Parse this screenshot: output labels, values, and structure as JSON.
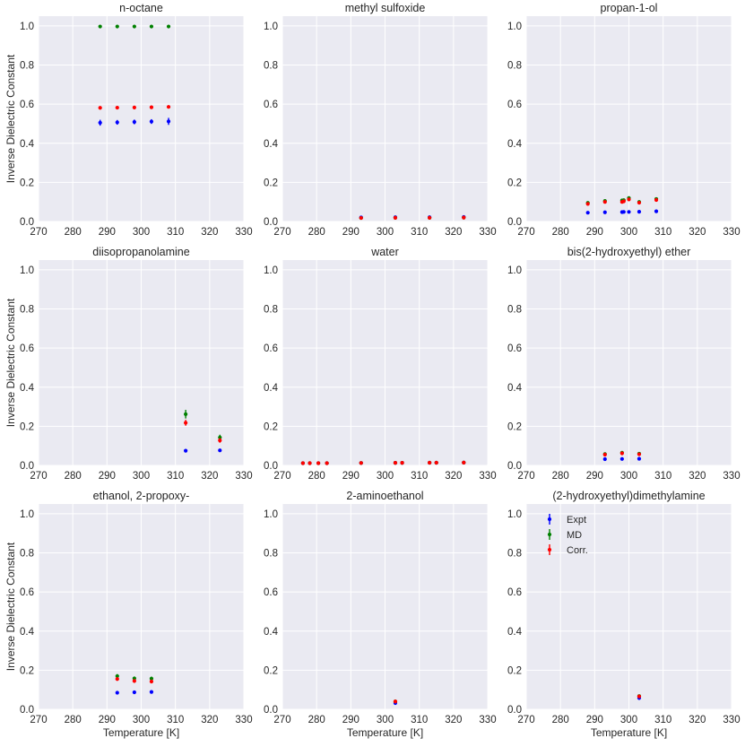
{
  "chart_data": {
    "type": "scatter",
    "layout": "3x3 grid of subplots",
    "shared_ylabel": "Inverse Dielectric Constant",
    "shared_xlabel": "Temperature [K]",
    "xlim": [
      270,
      330
    ],
    "ylim": [
      0,
      1.05
    ],
    "xticks": [
      270,
      280,
      290,
      300,
      310,
      320,
      330
    ],
    "yticks": [
      0.0,
      0.2,
      0.4,
      0.6,
      0.8,
      1.0
    ],
    "ytick_labels": [
      "0.0",
      "0.2",
      "0.4",
      "0.6",
      "0.8",
      "1.0"
    ],
    "grid": true,
    "colors": {
      "Expt": "#0000ff",
      "MD": "#008000",
      "Corr.": "#ff0000",
      "panel_bg": "#eaeaf2",
      "grid": "#ffffff"
    },
    "legend": {
      "panel": 8,
      "placement": "top-left",
      "entries": [
        "Expt",
        "MD",
        "Corr."
      ]
    },
    "panels": [
      {
        "title": "n-octane",
        "series": [
          {
            "name": "Expt",
            "x": [
              288,
              293,
              298,
              303,
              308
            ],
            "y": [
              0.505,
              0.507,
              0.509,
              0.511,
              0.512
            ],
            "err": [
              0.015,
              0.012,
              0.012,
              0.012,
              0.018
            ]
          },
          {
            "name": "MD",
            "x": [
              288,
              293,
              298,
              303,
              308
            ],
            "y": [
              0.997,
              0.997,
              0.997,
              0.997,
              0.997
            ],
            "err": [
              0.002,
              0.002,
              0.002,
              0.002,
              0.002
            ]
          },
          {
            "name": "Corr.",
            "x": [
              288,
              293,
              298,
              303,
              308
            ],
            "y": [
              0.581,
              0.582,
              0.583,
              0.584,
              0.586
            ],
            "err": [
              0.002,
              0.002,
              0.002,
              0.002,
              0.002
            ]
          }
        ]
      },
      {
        "title": "methyl sulfoxide",
        "series": [
          {
            "name": "Expt",
            "x": [
              293,
              303,
              313,
              323
            ],
            "y": [
              0.021,
              0.022,
              0.022,
              0.023
            ],
            "err": [
              0.001,
              0.001,
              0.001,
              0.001
            ]
          },
          {
            "name": "MD",
            "x": [
              293,
              303,
              313,
              323
            ],
            "y": [
              0.018,
              0.019,
              0.019,
              0.02
            ],
            "err": [
              0.003,
              0.003,
              0.003,
              0.003
            ]
          },
          {
            "name": "Corr.",
            "x": [
              293,
              303,
              313,
              323
            ],
            "y": [
              0.018,
              0.019,
              0.019,
              0.02
            ],
            "err": [
              0.002,
              0.002,
              0.002,
              0.002
            ]
          }
        ]
      },
      {
        "title": "propan-1-ol",
        "series": [
          {
            "name": "Expt",
            "x": [
              288,
              293,
              298,
              298.5,
              300,
              303,
              308
            ],
            "y": [
              0.045,
              0.047,
              0.048,
              0.049,
              0.049,
              0.05,
              0.052
            ],
            "err": [
              0.001,
              0.001,
              0.001,
              0.001,
              0.001,
              0.001,
              0.001
            ]
          },
          {
            "name": "MD",
            "x": [
              288,
              293,
              298,
              298.5,
              300,
              303,
              308
            ],
            "y": [
              0.095,
              0.105,
              0.108,
              0.109,
              0.12,
              0.1,
              0.115
            ],
            "err": [
              0.008,
              0.008,
              0.008,
              0.008,
              0.008,
              0.008,
              0.008
            ]
          },
          {
            "name": "Corr.",
            "x": [
              288,
              293,
              298,
              298.5,
              300,
              303,
              308
            ],
            "y": [
              0.09,
              0.1,
              0.1,
              0.103,
              0.113,
              0.096,
              0.11
            ],
            "err": [
              0.007,
              0.007,
              0.007,
              0.007,
              0.007,
              0.007,
              0.007
            ]
          }
        ]
      },
      {
        "title": "diisopropanolamine",
        "series": [
          {
            "name": "Expt",
            "x": [
              313,
              323
            ],
            "y": [
              0.075,
              0.077
            ],
            "err": [
              0.002,
              0.002
            ]
          },
          {
            "name": "MD",
            "x": [
              313,
              323
            ],
            "y": [
              0.262,
              0.143
            ],
            "err": [
              0.022,
              0.014
            ]
          },
          {
            "name": "Corr.",
            "x": [
              313,
              323
            ],
            "y": [
              0.218,
              0.128
            ],
            "err": [
              0.015,
              0.012
            ]
          }
        ]
      },
      {
        "title": "water",
        "series": [
          {
            "name": "Expt",
            "x": [
              276,
              278,
              280.5,
              283,
              293,
              303,
              305,
              313,
              315,
              323
            ],
            "y": [
              0.0113,
              0.0114,
              0.0115,
              0.0116,
              0.0124,
              0.0131,
              0.0133,
              0.0137,
              0.0139,
              0.0144
            ],
            "err": [
              0.001,
              0.001,
              0.001,
              0.001,
              0.001,
              0.001,
              0.001,
              0.001,
              0.001,
              0.001
            ]
          },
          {
            "name": "MD",
            "x": [
              276,
              278,
              280.5,
              283,
              293,
              303,
              305,
              313,
              315,
              323
            ],
            "y": [
              0.0113,
              0.0114,
              0.0115,
              0.0116,
              0.0124,
              0.0131,
              0.0133,
              0.0137,
              0.0139,
              0.0144
            ],
            "err": [
              0.002,
              0.002,
              0.002,
              0.002,
              0.002,
              0.002,
              0.002,
              0.002,
              0.002,
              0.002
            ]
          },
          {
            "name": "Corr.",
            "x": [
              276,
              278,
              280.5,
              283,
              293,
              303,
              305,
              313,
              315,
              323
            ],
            "y": [
              0.0113,
              0.0114,
              0.0115,
              0.0116,
              0.0124,
              0.0131,
              0.0133,
              0.0137,
              0.0139,
              0.0144
            ],
            "err": [
              0.002,
              0.002,
              0.002,
              0.002,
              0.002,
              0.002,
              0.002,
              0.002,
              0.002,
              0.002
            ]
          }
        ]
      },
      {
        "title": "bis(2-hydroxyethyl) ether",
        "series": [
          {
            "name": "Expt",
            "x": [
              293,
              298,
              303
            ],
            "y": [
              0.032,
              0.033,
              0.034
            ],
            "err": [
              0.001,
              0.001,
              0.001
            ]
          },
          {
            "name": "MD",
            "x": [
              293,
              298,
              303
            ],
            "y": [
              0.058,
              0.065,
              0.06
            ],
            "err": [
              0.004,
              0.004,
              0.004
            ]
          },
          {
            "name": "Corr.",
            "x": [
              293,
              298,
              303
            ],
            "y": [
              0.055,
              0.062,
              0.057
            ],
            "err": [
              0.003,
              0.003,
              0.003
            ]
          }
        ]
      },
      {
        "title": "ethanol, 2-propoxy-",
        "series": [
          {
            "name": "Expt",
            "x": [
              293,
              298,
              303
            ],
            "y": [
              0.085,
              0.087,
              0.089
            ],
            "err": [
              0.002,
              0.002,
              0.002
            ]
          },
          {
            "name": "MD",
            "x": [
              293,
              298,
              303
            ],
            "y": [
              0.17,
              0.158,
              0.157
            ],
            "err": [
              0.01,
              0.01,
              0.01
            ]
          },
          {
            "name": "Corr.",
            "x": [
              293,
              298,
              303
            ],
            "y": [
              0.155,
              0.145,
              0.142
            ],
            "err": [
              0.009,
              0.009,
              0.009
            ]
          }
        ]
      },
      {
        "title": "2-aminoethanol",
        "series": [
          {
            "name": "Expt",
            "x": [
              303
            ],
            "y": [
              0.032
            ],
            "err": [
              0.001
            ]
          },
          {
            "name": "MD",
            "x": [
              303
            ],
            "y": [
              0.04
            ],
            "err": [
              0.003
            ]
          },
          {
            "name": "Corr.",
            "x": [
              303
            ],
            "y": [
              0.04
            ],
            "err": [
              0.003
            ]
          }
        ]
      },
      {
        "title": "(2-hydroxyethyl)dimethylamine",
        "series": [
          {
            "name": "Expt",
            "x": [
              303
            ],
            "y": [
              0.058
            ],
            "err": [
              0.001
            ]
          },
          {
            "name": "MD",
            "x": [
              303
            ],
            "y": [
              0.068
            ],
            "err": [
              0.004
            ]
          },
          {
            "name": "Corr.",
            "x": [
              303
            ],
            "y": [
              0.066
            ],
            "err": [
              0.004
            ]
          }
        ]
      }
    ]
  }
}
